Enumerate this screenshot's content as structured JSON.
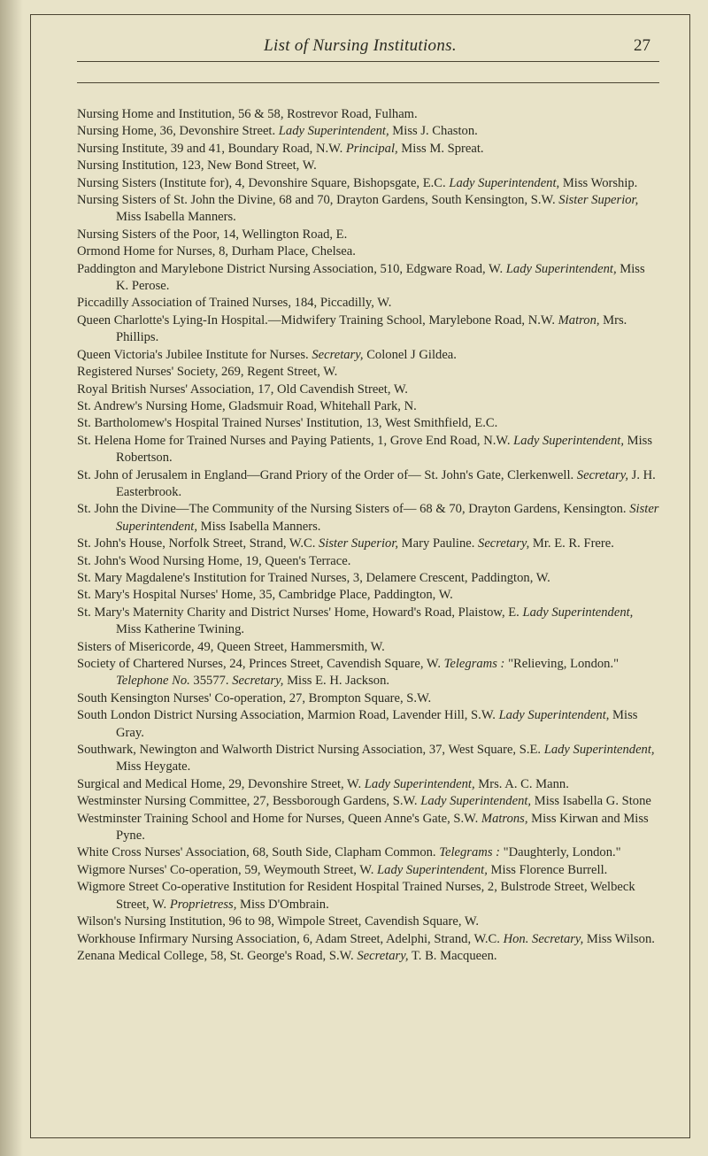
{
  "header": {
    "running_title": "List of Nursing Institutions.",
    "page_number": "27"
  },
  "entries": [
    "Nursing Home and Institution, 56 & 58, Rostrevor Road, Fulham.",
    "Nursing Home, 36, Devonshire Street. <i>Lady Superintendent,</i> Miss J. Chaston.",
    "Nursing Institute, 39 and 41, Boundary Road, N.W. <i>Principal,</i> Miss M. Spreat.",
    "Nursing Institution, 123, New Bond Street, W.",
    "Nursing Sisters (Institute for), 4, Devonshire Square, Bishopsgate, E.C. <i>Lady Superintendent,</i> Miss Worship.",
    "Nursing Sisters of St. John the Divine, 68 and 70, Drayton Gardens, South Kensington, S.W. <i>Sister Superior,</i> Miss Isabella Manners.",
    "Nursing Sisters of the Poor, 14, Wellington Road, E.",
    "Ormond Home for Nurses, 8, Durham Place, Chelsea.",
    "Paddington and Marylebone District Nursing Association, 510, Edgware Road, W. <i>Lady Superintendent,</i> Miss K. Perose.",
    "Piccadilly Association of Trained Nurses, 184, Piccadilly, W.",
    "Queen Charlotte's Lying-In Hospital.—Midwifery Training School, Marylebone Road, N.W. <i>Matron,</i> Mrs. Phillips.",
    "Queen Victoria's Jubilee Institute for Nurses. <i>Secretary,</i> Colonel J Gildea.",
    "Registered Nurses' Society, 269, Regent Street, W.",
    "Royal British Nurses' Association, 17, Old Cavendish Street, W.",
    "St. Andrew's Nursing Home, Gladsmuir Road, Whitehall Park, N.",
    "St. Bartholomew's Hospital Trained Nurses' Institution, 13, West Smithfield, E.C.",
    "St. Helena Home for Trained Nurses and Paying Patients, 1, Grove End Road, N.W. <i>Lady Superintendent,</i> Miss Robertson.",
    "St. John of Jerusalem in England—Grand Priory of the Order of— St. John's Gate, Clerkenwell. <i>Secretary,</i> J. H. Easterbrook.",
    "St. John the Divine—The Community of the Nursing Sisters of— 68 & 70, Drayton Gardens, Kensington. <i>Sister Superintendent,</i> Miss Isabella Manners.",
    "St. John's House, Norfolk Street, Strand, W.C. <i>Sister Superior,</i> Mary Pauline. <i>Secretary,</i> Mr. E. R. Frere.",
    "St. John's Wood Nursing Home, 19, Queen's Terrace.",
    "St. Mary Magdalene's Institution for Trained Nurses, 3, Delamere Crescent, Paddington, W.",
    "St. Mary's Hospital Nurses' Home, 35, Cambridge Place, Paddington, W.",
    "St. Mary's Maternity Charity and District Nurses' Home, Howard's Road, Plaistow, E. <i>Lady Superintendent,</i> Miss Katherine Twining.",
    "Sisters of Misericorde, 49, Queen Street, Hammersmith, W.",
    "Society of Chartered Nurses, 24, Princes Street, Cavendish Square, W. <i>Telegrams :</i> \"Relieving, London.\" <i>Telephone No.</i> 35577. <i>Secretary,</i> Miss E. H. Jackson.",
    "South Kensington Nurses' Co-operation, 27, Brompton Square, S.W.",
    "South London District Nursing Association, Marmion Road, Lavender Hill, S.W. <i>Lady Superintendent,</i> Miss Gray.",
    "Southwark, Newington and Walworth District Nursing Association, 37, West Square, S.E. <i>Lady Superintendent,</i> Miss Heygate.",
    "Surgical and Medical Home, 29, Devonshire Street, W. <i>Lady Superintendent,</i> Mrs. A. C. Mann.",
    "Westminster Nursing Committee, 27, Bessborough Gardens, S.W. <i>Lady Superintendent,</i> Miss Isabella G. Stone",
    "Westminster Training School and Home for Nurses, Queen Anne's Gate, S.W. <i>Matrons,</i> Miss Kirwan and Miss Pyne.",
    "White Cross Nurses' Association, 68, South Side, Clapham Common. <i>Telegrams :</i> \"Daughterly, London.\"",
    "Wigmore Nurses' Co-operation, 59, Weymouth Street, W. <i>Lady Superintendent,</i> Miss Florence Burrell.",
    "Wigmore Street Co-operative Institution for Resident Hospital Trained Nurses, 2, Bulstrode Street, Welbeck Street, W. <i>Proprietress,</i> Miss D'Ombrain.",
    "Wilson's Nursing Institution, 96 to 98, Wimpole Street, Cavendish Square, W.",
    "Workhouse Infirmary Nursing Association, 6, Adam Street, Adelphi, Strand, W.C. <i>Hon. Secretary,</i> Miss Wilson.",
    "Zenana Medical College, 58, St. George's Road, S.W. <i>Secretary,</i> T. B. Macqueen."
  ]
}
